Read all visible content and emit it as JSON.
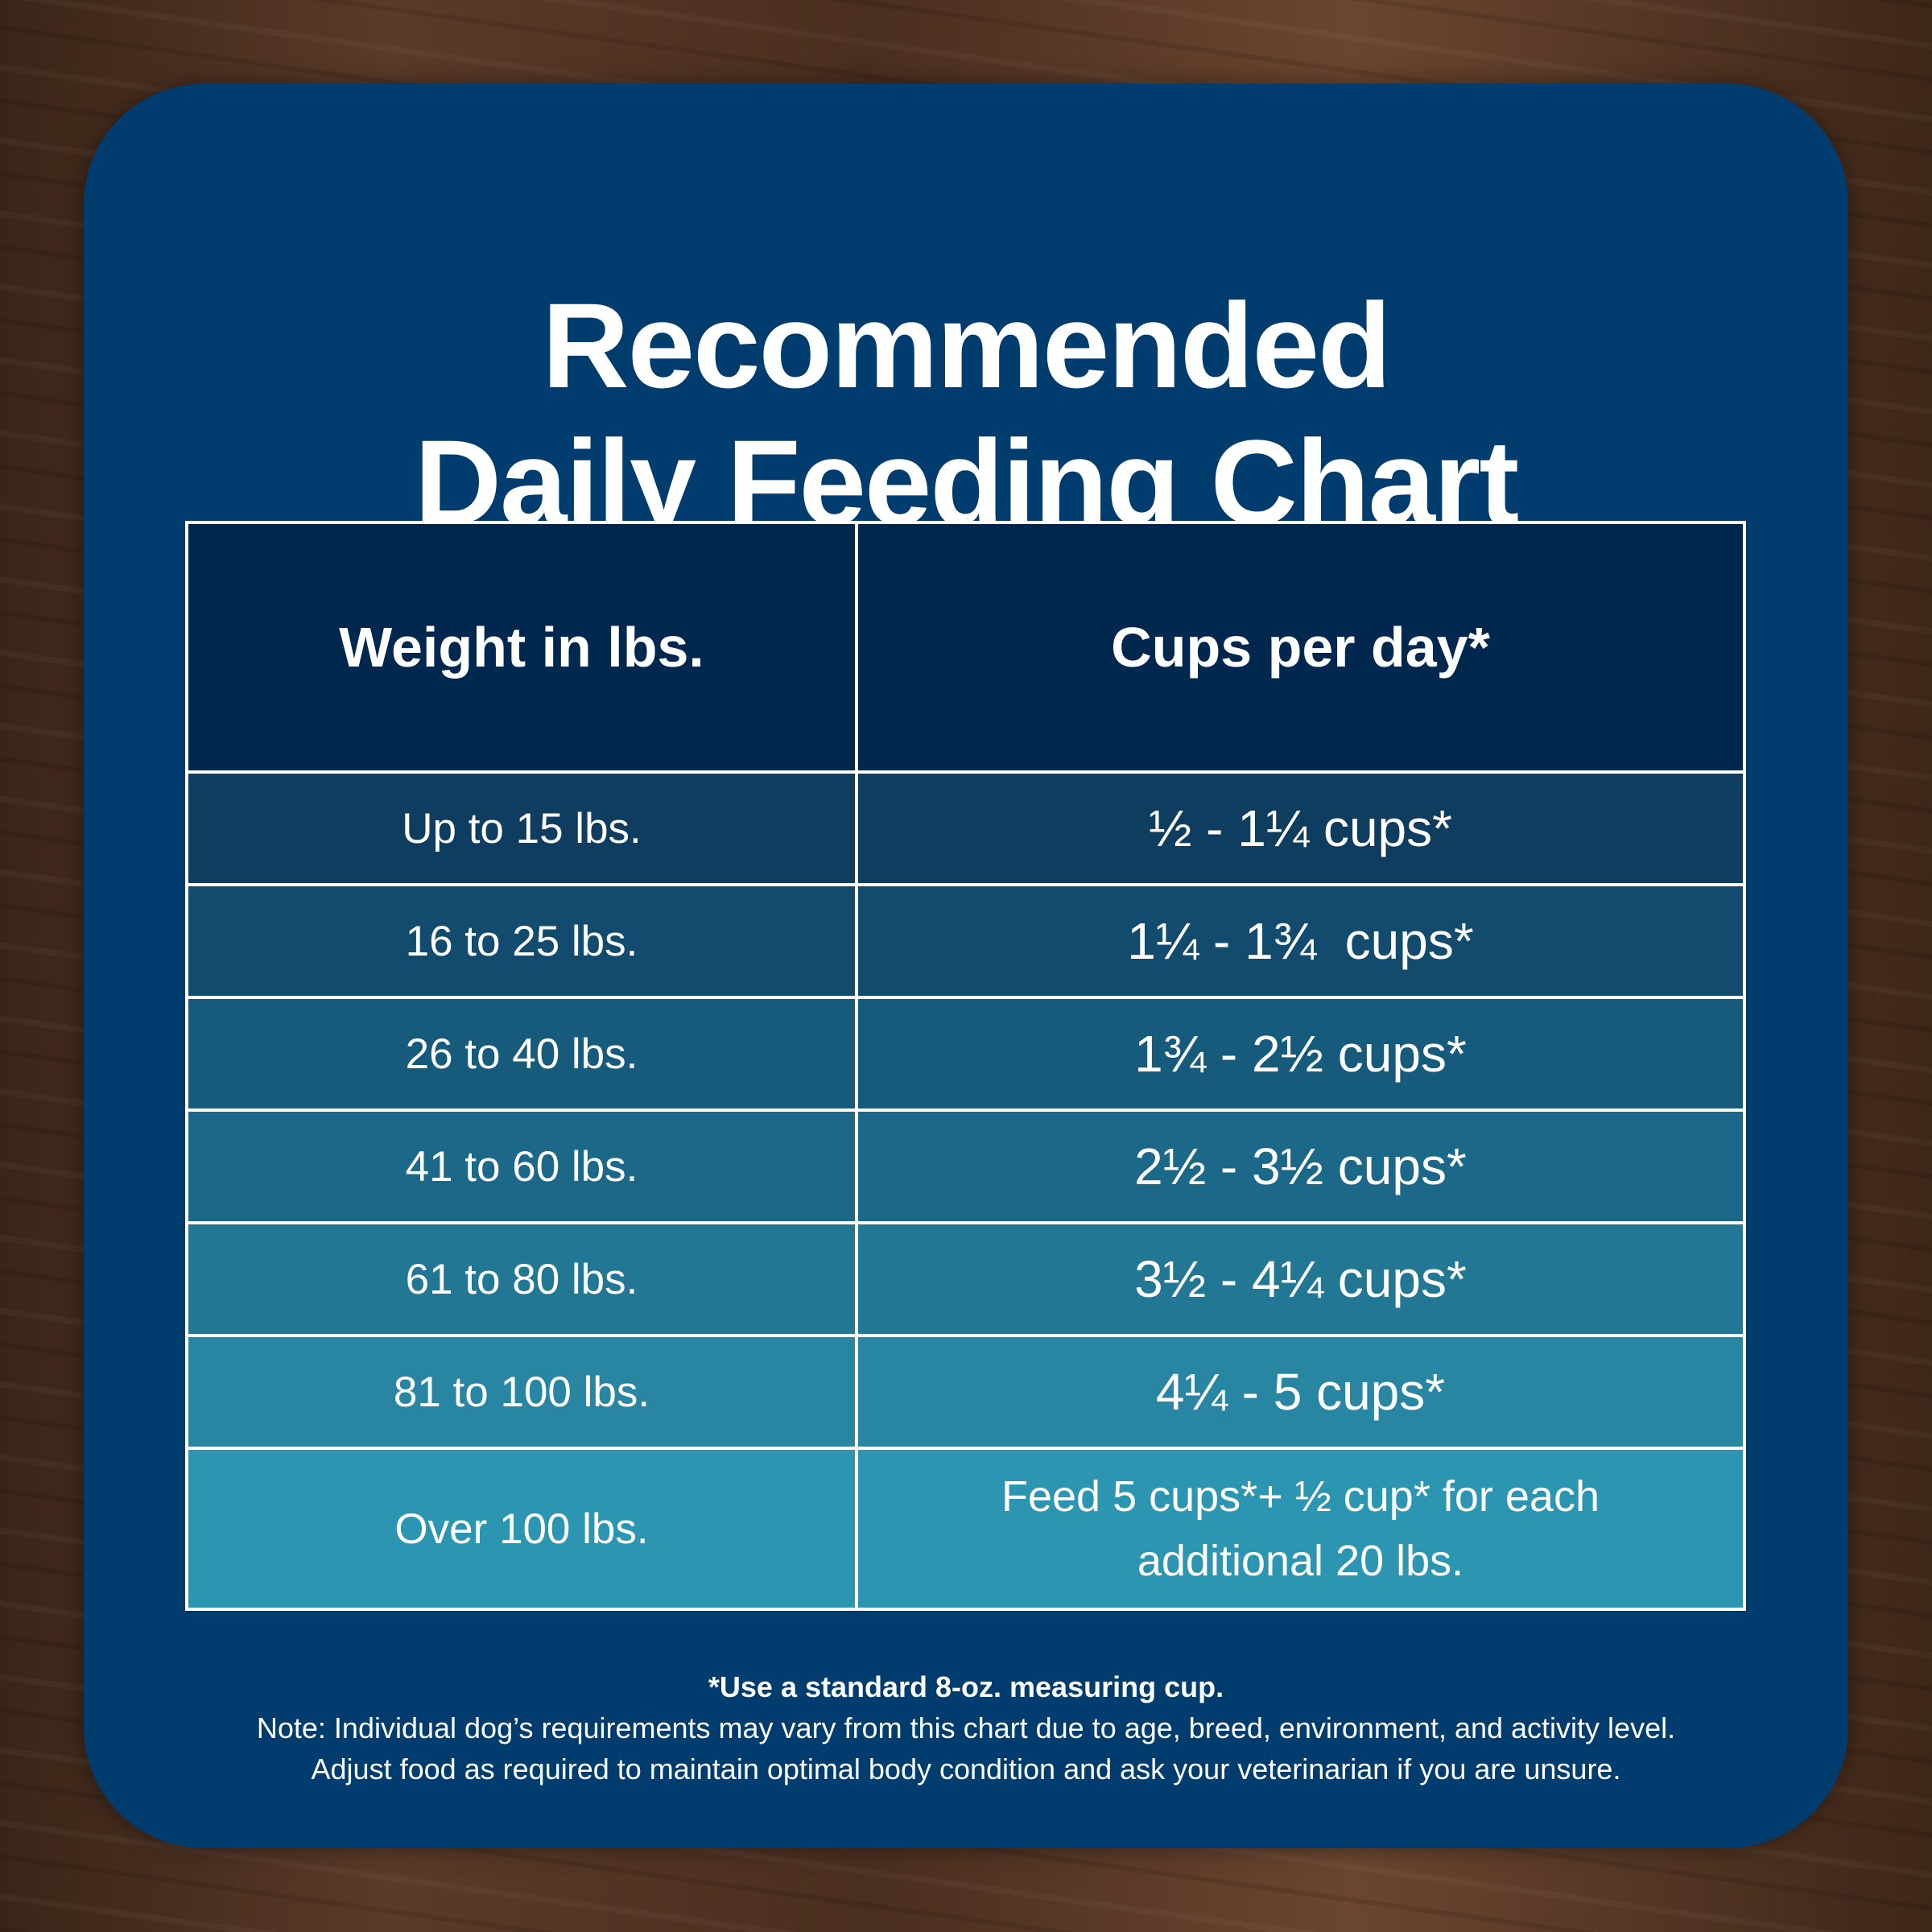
{
  "title": {
    "line1": "Recommended",
    "line2": "Daily Feeding Chart"
  },
  "table": {
    "headers": [
      "Weight in lbs.",
      "Cups per day*"
    ],
    "rows": [
      {
        "weight": "Up to 15 lbs.",
        "cups": "½ - 1¼ cups*",
        "color": "#0f3d60"
      },
      {
        "weight": "16 to 25 lbs.",
        "cups": "1¼ - 1¾  cups*",
        "color": "#124b6e"
      },
      {
        "weight": "26 to 40 lbs.",
        "cups": "1¾ - 2½ cups*",
        "color": "#165a7c"
      },
      {
        "weight": "41 to 60 lbs.",
        "cups": "2½ - 3½ cups*",
        "color": "#1b6888"
      },
      {
        "weight": "61 to 80 lbs.",
        "cups": "3½ - 4¼ cups*",
        "color": "#217794"
      },
      {
        "weight": "81 to 100 lbs.",
        "cups": "4¼ - 5 cups*",
        "color": "#2886a2"
      },
      {
        "weight": "Over 100 lbs.",
        "cups_line1": "Feed 5 cups*+ ½ cup* for each",
        "cups_line2": "additional 20 lbs.",
        "color": "#2c95b1"
      }
    ]
  },
  "footer": {
    "line1": "*Use a standard 8-oz. measuring cup.",
    "line2": "Note: Individual dog’s requirements may vary from this chart due to age, breed, environment, and activity level.",
    "line3": "Adjust food as required to maintain optimal body condition and ask your veterinarian if you are unsure."
  },
  "colors": {
    "card": "#003d6e",
    "header": "#00284f",
    "border": "#ffffff"
  }
}
